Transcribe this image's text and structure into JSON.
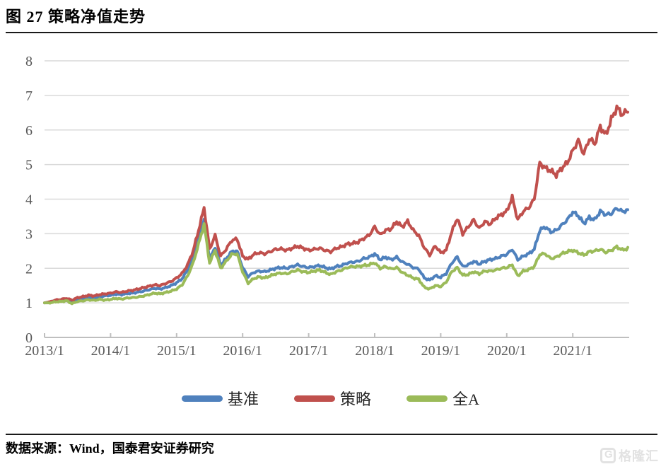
{
  "page": {
    "title": "图 27 策略净值走势",
    "source_note": "数据来源：Wind，国泰君安证券研究",
    "watermark": {
      "logo_letter": "G",
      "text": "格隆汇"
    }
  },
  "chart_data": {
    "type": "line",
    "title": "策略净值走势",
    "frequency": "monthly",
    "x_range": [
      "2013/1",
      "2021/11"
    ],
    "x_tick_labels": [
      "2013/1",
      "2014/1",
      "2015/1",
      "2016/1",
      "2017/1",
      "2018/1",
      "2019/1",
      "2020/1",
      "2021/1"
    ],
    "y_ticks": [
      0,
      1,
      2,
      3,
      4,
      5,
      6,
      7,
      8
    ],
    "ylim": [
      0,
      8
    ],
    "grid": true,
    "legend_position": "bottom",
    "axis_color": "#bfbfbf",
    "grid_color": "#d9d9d9",
    "tick_label_color": "#595959",
    "series": [
      {
        "name": "基准",
        "color": "#4F81BD",
        "values": [
          1.0,
          1.02,
          1.06,
          1.07,
          1.1,
          1.05,
          1.1,
          1.13,
          1.16,
          1.14,
          1.18,
          1.2,
          1.22,
          1.25,
          1.24,
          1.27,
          1.28,
          1.31,
          1.34,
          1.38,
          1.42,
          1.4,
          1.44,
          1.5,
          1.58,
          1.7,
          1.95,
          2.3,
          2.85,
          3.4,
          2.25,
          2.62,
          2.08,
          2.28,
          2.48,
          2.5,
          2.02,
          1.76,
          1.88,
          1.92,
          1.9,
          1.95,
          2.0,
          2.02,
          2.0,
          2.05,
          2.1,
          2.05,
          2.02,
          2.05,
          2.08,
          2.02,
          1.98,
          2.05,
          2.08,
          2.15,
          2.18,
          2.2,
          2.28,
          2.32,
          2.42,
          2.25,
          2.32,
          2.25,
          2.32,
          2.18,
          2.12,
          2.02,
          1.98,
          1.72,
          1.66,
          1.78,
          1.74,
          1.85,
          2.15,
          2.33,
          2.05,
          2.1,
          2.2,
          2.12,
          2.2,
          2.25,
          2.28,
          2.35,
          2.4,
          2.55,
          2.25,
          2.35,
          2.42,
          2.55,
          3.1,
          3.2,
          3.05,
          3.1,
          3.25,
          3.4,
          3.63,
          3.52,
          3.3,
          3.47,
          3.4,
          3.65,
          3.55,
          3.58,
          3.74,
          3.64,
          3.68
        ]
      },
      {
        "name": "策略",
        "color": "#C0504D",
        "values": [
          1.0,
          1.03,
          1.08,
          1.1,
          1.13,
          1.08,
          1.15,
          1.18,
          1.22,
          1.2,
          1.24,
          1.26,
          1.28,
          1.32,
          1.3,
          1.34,
          1.36,
          1.4,
          1.44,
          1.48,
          1.52,
          1.5,
          1.56,
          1.62,
          1.72,
          1.85,
          2.1,
          2.5,
          3.1,
          3.75,
          2.55,
          2.95,
          2.35,
          2.55,
          2.8,
          2.85,
          2.35,
          2.26,
          2.4,
          2.45,
          2.42,
          2.48,
          2.55,
          2.56,
          2.52,
          2.58,
          2.64,
          2.58,
          2.52,
          2.55,
          2.58,
          2.52,
          2.48,
          2.58,
          2.62,
          2.7,
          2.72,
          2.76,
          2.86,
          2.96,
          3.2,
          2.97,
          3.1,
          3.14,
          3.35,
          3.2,
          3.36,
          3.1,
          2.95,
          2.6,
          2.38,
          2.65,
          2.45,
          2.52,
          3.05,
          3.45,
          3.0,
          3.2,
          3.4,
          3.15,
          3.35,
          3.28,
          3.45,
          3.55,
          3.65,
          4.05,
          3.4,
          3.65,
          3.75,
          4.0,
          5.05,
          4.9,
          4.82,
          4.7,
          4.9,
          5.05,
          5.4,
          5.7,
          5.3,
          5.75,
          5.6,
          6.1,
          5.85,
          6.3,
          6.65,
          6.45,
          6.55
        ]
      },
      {
        "name": "全A",
        "color": "#9BBB59",
        "values": [
          1.0,
          1.0,
          1.03,
          1.04,
          1.06,
          0.98,
          1.04,
          1.06,
          1.09,
          1.07,
          1.1,
          1.08,
          1.1,
          1.13,
          1.11,
          1.14,
          1.15,
          1.17,
          1.2,
          1.24,
          1.28,
          1.26,
          1.3,
          1.34,
          1.4,
          1.52,
          1.78,
          2.15,
          2.7,
          3.27,
          2.15,
          2.52,
          2.0,
          2.2,
          2.4,
          2.42,
          1.9,
          1.57,
          1.7,
          1.75,
          1.72,
          1.78,
          1.84,
          1.86,
          1.84,
          1.9,
          1.95,
          1.9,
          1.88,
          1.92,
          1.95,
          1.88,
          1.82,
          1.9,
          1.95,
          2.02,
          2.05,
          2.05,
          2.08,
          2.1,
          2.16,
          2.0,
          2.05,
          1.98,
          2.02,
          1.88,
          1.8,
          1.72,
          1.68,
          1.45,
          1.4,
          1.5,
          1.47,
          1.6,
          1.9,
          2.02,
          1.8,
          1.82,
          1.9,
          1.84,
          1.92,
          1.92,
          1.95,
          2.0,
          2.02,
          2.1,
          1.78,
          1.92,
          1.96,
          2.05,
          2.4,
          2.42,
          2.28,
          2.32,
          2.42,
          2.48,
          2.52,
          2.45,
          2.38,
          2.48,
          2.5,
          2.55,
          2.46,
          2.52,
          2.62,
          2.53,
          2.57
        ]
      }
    ]
  }
}
